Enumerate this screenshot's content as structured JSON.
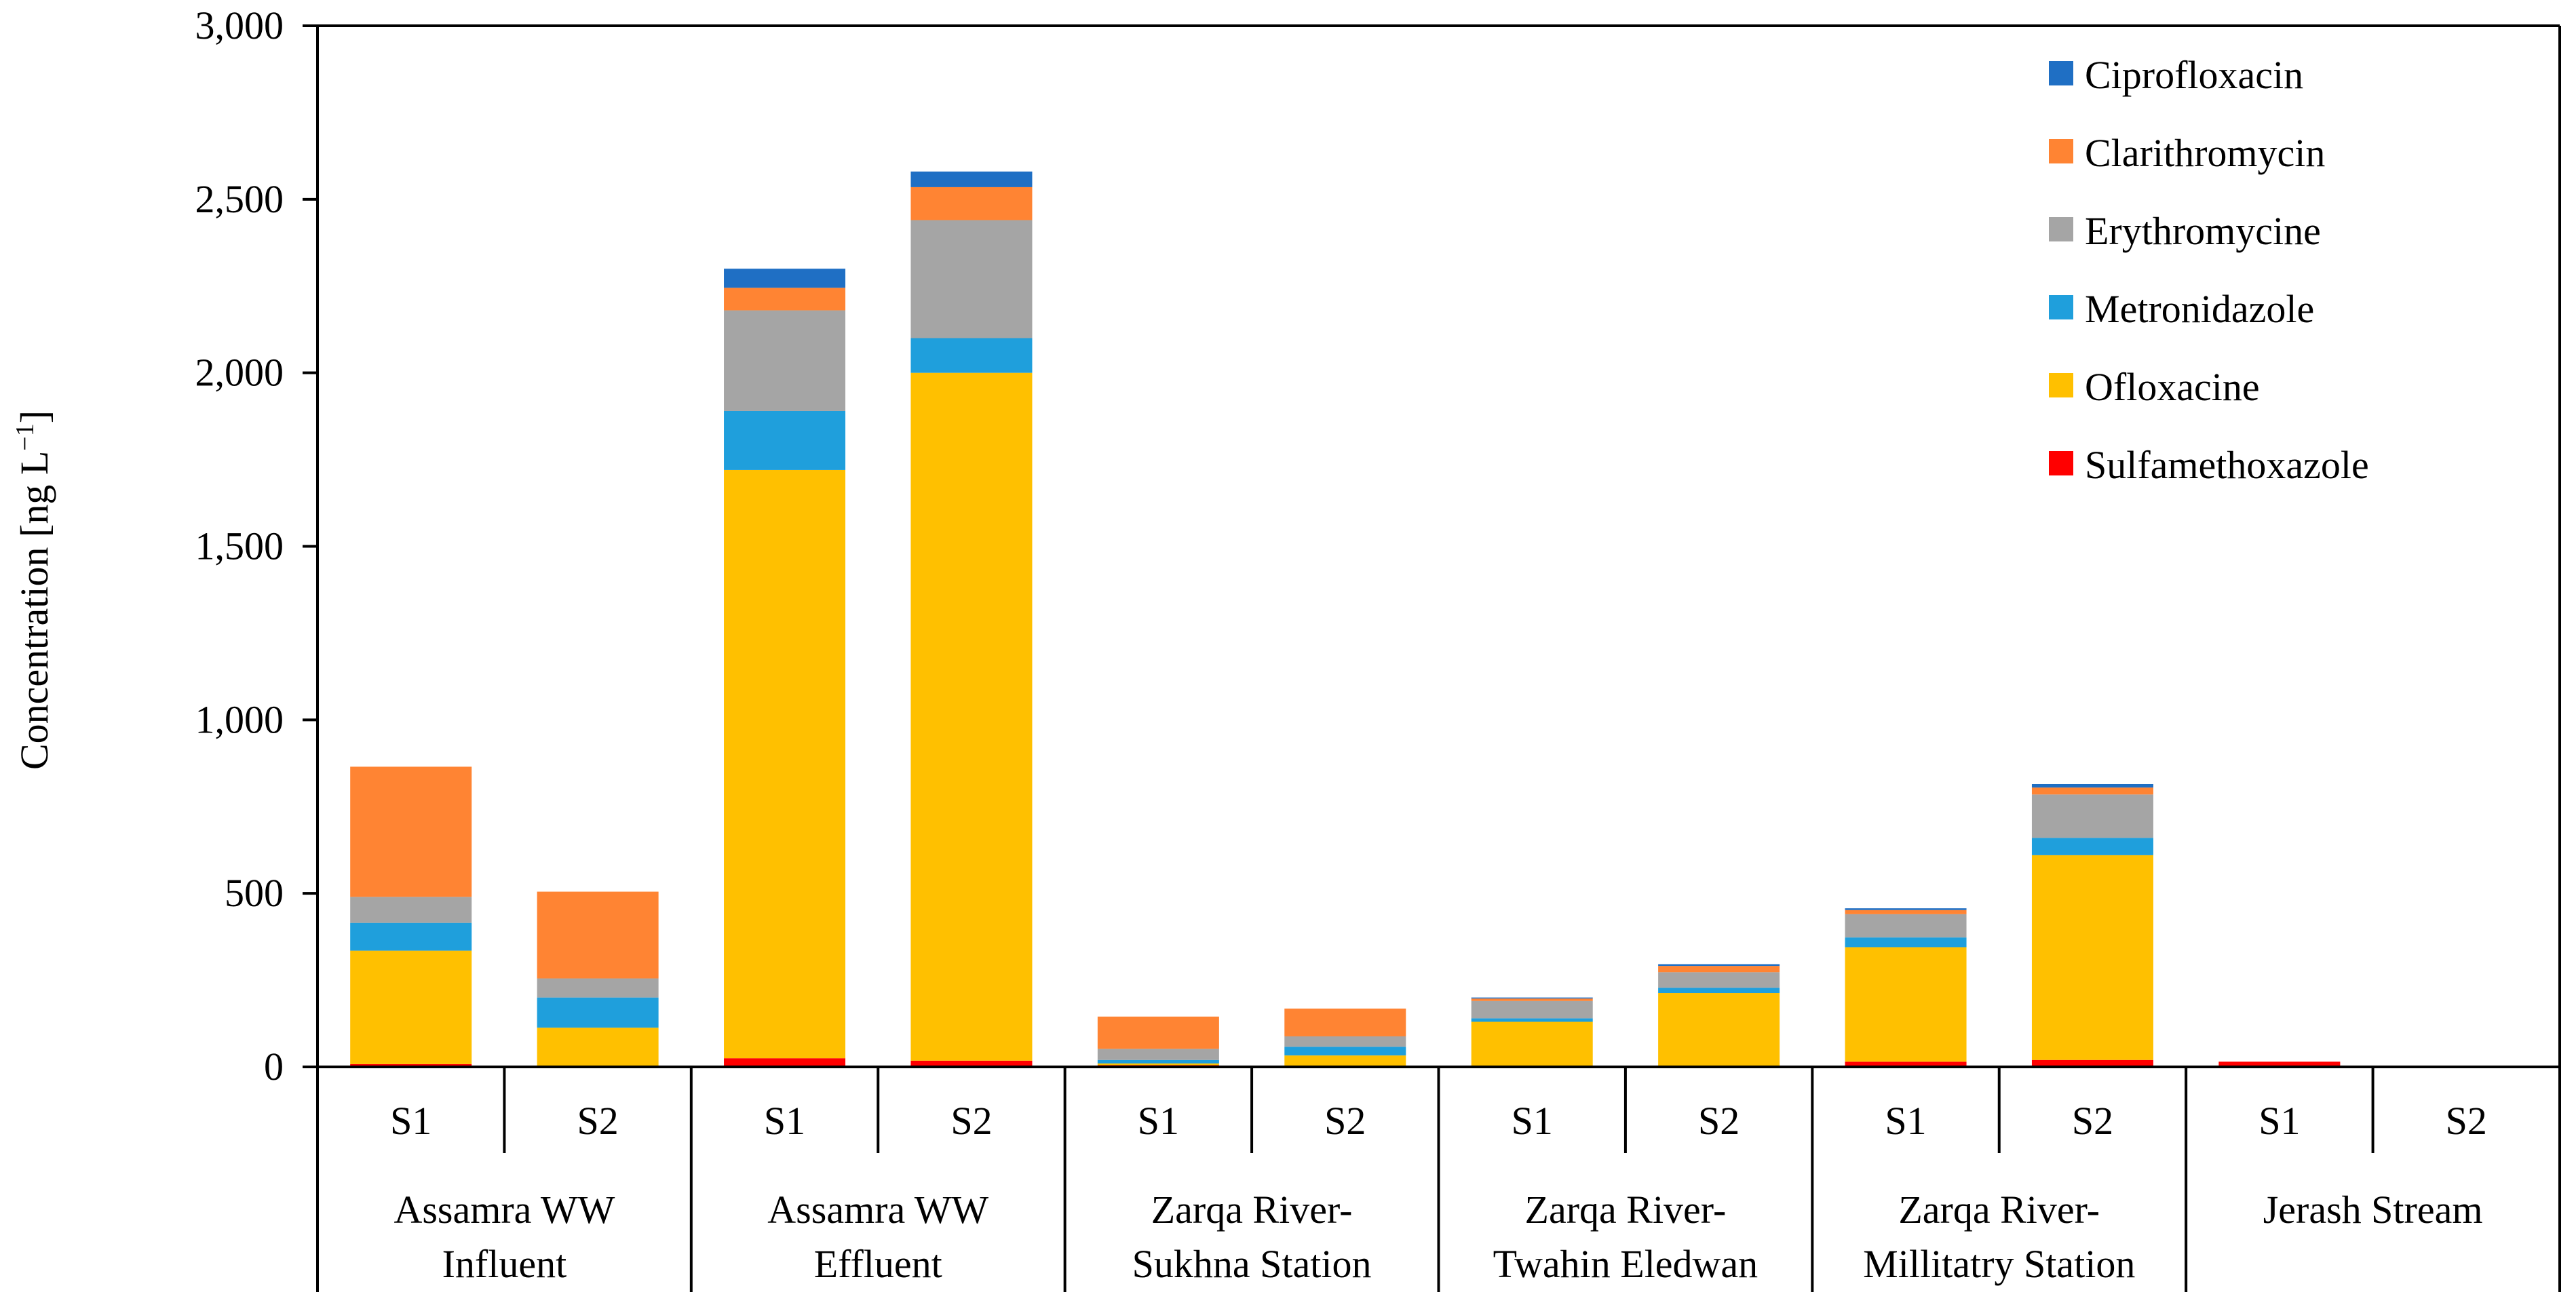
{
  "chart_data": {
    "type": "stacked-bar",
    "ylabel": "Concentration [ng L",
    "ylabel_sup": "−1",
    "ylabel_close": "]",
    "ylim": [
      0,
      3000
    ],
    "y_ticks": [
      0,
      500,
      1000,
      1500,
      2000,
      2500,
      3000
    ],
    "y_tick_labels": [
      "0",
      "500",
      "1,000",
      "1,500",
      "2,000",
      "2,500",
      "3,000"
    ],
    "legend_position": "top-right",
    "groups": [
      {
        "label_lines": [
          "Assamra WW",
          "Influent"
        ]
      },
      {
        "label_lines": [
          "Assamra WW",
          "Effluent"
        ]
      },
      {
        "label_lines": [
          "Zarqa River-",
          "Sukhna Station"
        ]
      },
      {
        "label_lines": [
          "Zarqa River-",
          "Twahin Eledwan"
        ]
      },
      {
        "label_lines": [
          "Zarqa River-",
          "Millitatry Station"
        ]
      },
      {
        "label_lines": [
          "Jerash Stream"
        ]
      }
    ],
    "categories": [
      "S1",
      "S2",
      "S1",
      "S2",
      "S1",
      "S2",
      "S1",
      "S2",
      "S1",
      "S2",
      "S1",
      "S2"
    ],
    "series": [
      {
        "name": "Sulfamethoxazole",
        "color": "#FF0000",
        "values": [
          8,
          3,
          25,
          18,
          5,
          3,
          3,
          3,
          15,
          20,
          15,
          0
        ]
      },
      {
        "name": "Ofloxacine",
        "color": "#FFC000",
        "values": [
          327,
          110,
          1695,
          1982,
          5,
          30,
          127,
          210,
          330,
          590,
          0,
          0
        ]
      },
      {
        "name": "Metronidazole",
        "color": "#1F9FDC",
        "values": [
          80,
          87,
          170,
          100,
          10,
          25,
          10,
          15,
          28,
          50,
          0,
          0
        ]
      },
      {
        "name": "Erythromycine",
        "color": "#A5A5A5",
        "values": [
          75,
          55,
          290,
          340,
          32,
          30,
          50,
          45,
          67,
          125,
          0,
          0
        ]
      },
      {
        "name": "Clarithromycin",
        "color": "#FF8433",
        "values": [
          375,
          250,
          65,
          95,
          93,
          80,
          7,
          18,
          12,
          20,
          0,
          0
        ]
      },
      {
        "name": "Ciprofloxacin",
        "color": "#1F6FC4",
        "values": [
          0,
          0,
          55,
          45,
          0,
          0,
          3,
          5,
          5,
          10,
          0,
          0
        ]
      }
    ]
  }
}
